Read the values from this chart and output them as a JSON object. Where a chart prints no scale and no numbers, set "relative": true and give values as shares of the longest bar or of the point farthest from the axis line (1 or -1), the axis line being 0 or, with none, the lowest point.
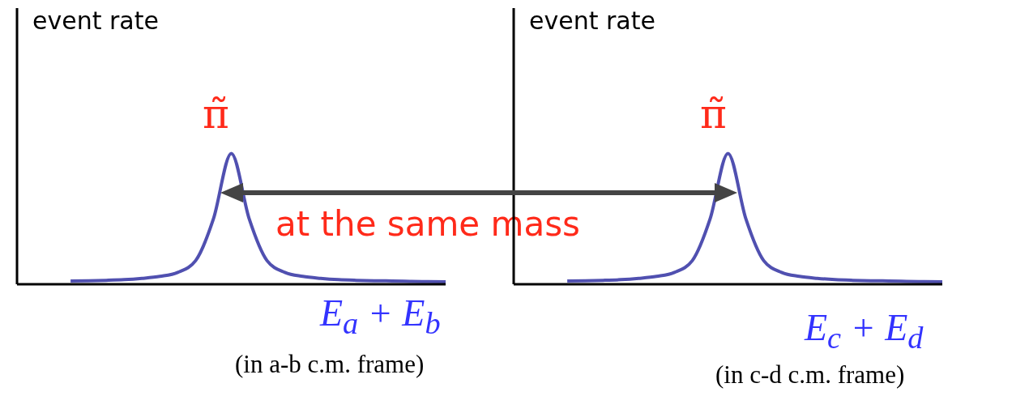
{
  "chart_data": [
    {
      "type": "line",
      "ylabel": "event rate",
      "xlabel": "E$_{a}$ + E$_{b}$",
      "relative": true,
      "categories": [
        null,
        null,
        null,
        null,
        null,
        null,
        null,
        null,
        null,
        null,
        null,
        null,
        null,
        null,
        null,
        null,
        null,
        null,
        null,
        null,
        null,
        null,
        null,
        null,
        null
      ],
      "series": [
        {
          "color": "#5050b0",
          "values": [
            null,
            null,
            null,
            0.025,
            0.027,
            0.03,
            0.035,
            0.045,
            0.06,
            0.09,
            0.18,
            0.5,
            1,
            0.5,
            0.18,
            0.09,
            0.06,
            0.045,
            0.035,
            0.03,
            0.027,
            0.025,
            0.022,
            0.02,
            0.018
          ]
        }
      ],
      "annotations": [
        "π̃",
        "(in a-b c.m. frame)",
        "at the same mass"
      ]
    },
    {
      "type": "line",
      "ylabel": "event rate",
      "xlabel": "E$_{c}$ + E$_{d}$",
      "relative": true,
      "categories": [
        null,
        null,
        null,
        null,
        null,
        null,
        null,
        null,
        null,
        null,
        null,
        null,
        null,
        null,
        null,
        null,
        null,
        null,
        null,
        null,
        null,
        null,
        null,
        null,
        null
      ],
      "series": [
        {
          "color": "#5050b0",
          "values": [
            null,
            null,
            null,
            0.025,
            0.027,
            0.03,
            0.035,
            0.045,
            0.06,
            0.09,
            0.18,
            0.5,
            1,
            0.5,
            0.18,
            0.09,
            0.06,
            0.045,
            0.035,
            0.03,
            0.027,
            0.025,
            0.022,
            0.02,
            0.018
          ]
        }
      ],
      "annotations": [
        "π̃",
        "(in c-d c.m. frame)"
      ]
    }
  ]
}
